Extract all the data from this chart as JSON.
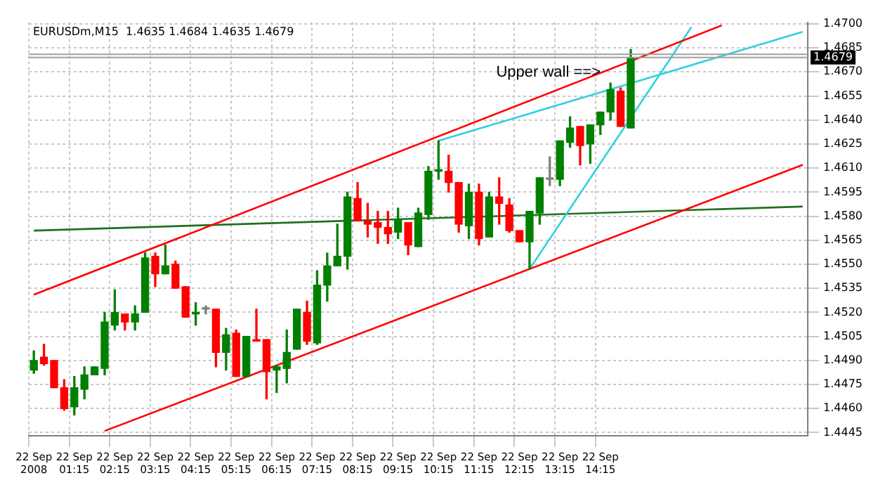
{
  "chart_data": {
    "type": "candlestick",
    "title": "EURUSDm,M15  1.4635 1.4684 1.4635 1.4679",
    "annotations": [
      "Upper wall ==>"
    ],
    "categories": [
      "22 Sep 2008",
      null,
      null,
      null,
      "22 Sep 01:15",
      null,
      null,
      null,
      "22 Sep 02:15",
      null,
      null,
      null,
      "22 Sep 03:15",
      null,
      null,
      null,
      "22 Sep 04:15",
      null,
      null,
      null,
      "22 Sep 05:15",
      null,
      null,
      null,
      "22 Sep 06:15",
      null,
      null,
      null,
      "22 Sep 07:15",
      null,
      null,
      null,
      "22 Sep 08:15",
      null,
      null,
      null,
      "22 Sep 09:15",
      null,
      null,
      null,
      "22 Sep 10:15",
      null,
      null,
      null,
      "22 Sep 11:15",
      null,
      null,
      null,
      "22 Sep 12:15",
      null,
      null,
      null,
      "22 Sep 13:15",
      null,
      null,
      null,
      "22 Sep 14:15",
      null,
      null,
      null,
      null,
      null,
      null,
      null,
      null,
      null,
      null,
      null,
      null,
      null,
      null,
      null,
      null,
      null,
      null,
      null,
      null
    ],
    "ohlc": [
      [
        1.4484,
        1.4496,
        1.4482,
        1.449
      ],
      [
        1.4492,
        1.45,
        1.4487,
        1.4488
      ],
      [
        1.449,
        1.449,
        1.4473,
        1.4473
      ],
      [
        1.4473,
        1.4478,
        1.4459,
        1.446
      ],
      [
        1.4461,
        1.448,
        1.4456,
        1.4473
      ],
      [
        1.4472,
        1.4486,
        1.4466,
        1.4481
      ],
      [
        1.4481,
        1.4486,
        1.4481,
        1.4486
      ],
      [
        1.4485,
        1.452,
        1.4481,
        1.4514
      ],
      [
        1.4512,
        1.4534,
        1.4509,
        1.452
      ],
      [
        1.4519,
        1.4519,
        1.4509,
        1.4514
      ],
      [
        1.4514,
        1.4524,
        1.4509,
        1.4519
      ],
      [
        1.452,
        1.4557,
        1.452,
        1.4554
      ],
      [
        1.4555,
        1.4557,
        1.4536,
        1.4544
      ],
      [
        1.4544,
        1.4562,
        1.4544,
        1.4549
      ],
      [
        1.455,
        1.4552,
        1.4535,
        1.4535
      ],
      [
        1.4536,
        1.4536,
        1.4517,
        1.4517
      ],
      [
        1.4519,
        1.4526,
        1.4512,
        1.452
      ],
      [
        1.4522,
        1.4524,
        1.4519,
        1.4522
      ],
      [
        1.4522,
        1.4522,
        1.4486,
        1.4495
      ],
      [
        1.4495,
        1.451,
        1.4484,
        1.4506
      ],
      [
        1.4507,
        1.4509,
        1.448,
        1.448
      ],
      [
        1.448,
        1.4505,
        1.448,
        1.4505
      ],
      [
        1.4503,
        1.4522,
        1.4502,
        1.4502
      ],
      [
        1.4503,
        1.4503,
        1.4466,
        1.4483
      ],
      [
        1.4484,
        1.4487,
        1.447,
        1.4486
      ],
      [
        1.4485,
        1.4509,
        1.4476,
        1.4495
      ],
      [
        1.4497,
        1.4522,
        1.4497,
        1.4522
      ],
      [
        1.452,
        1.4527,
        1.45,
        1.4502
      ],
      [
        1.4501,
        1.4546,
        1.45,
        1.4537
      ],
      [
        1.4537,
        1.4557,
        1.4527,
        1.4549
      ],
      [
        1.4549,
        1.4575,
        1.4549,
        1.4555
      ],
      [
        1.4555,
        1.4595,
        1.4547,
        1.4592
      ],
      [
        1.4591,
        1.4601,
        1.4577,
        1.4577
      ],
      [
        1.4577,
        1.4588,
        1.4567,
        1.4575
      ],
      [
        1.4576,
        1.4583,
        1.4563,
        1.4573
      ],
      [
        1.4573,
        1.4583,
        1.4563,
        1.4569
      ],
      [
        1.457,
        1.4585,
        1.4566,
        1.4578
      ],
      [
        1.4576,
        1.4576,
        1.4556,
        1.4562
      ],
      [
        1.4561,
        1.4585,
        1.4561,
        1.4582
      ],
      [
        1.4581,
        1.4611,
        1.4578,
        1.4608
      ],
      [
        1.4608,
        1.4627,
        1.4603,
        1.4609
      ],
      [
        1.4608,
        1.4618,
        1.4595,
        1.4601
      ],
      [
        1.4601,
        1.4601,
        1.457,
        1.4575
      ],
      [
        1.4574,
        1.46,
        1.4566,
        1.4595
      ],
      [
        1.4595,
        1.46,
        1.4562,
        1.4566
      ],
      [
        1.4567,
        1.4595,
        1.4567,
        1.4592
      ],
      [
        1.4592,
        1.4604,
        1.4575,
        1.4588
      ],
      [
        1.4587,
        1.4591,
        1.457,
        1.4571
      ],
      [
        1.4571,
        1.4571,
        1.4564,
        1.4564
      ],
      [
        1.4564,
        1.4583,
        1.4547,
        1.4583
      ],
      [
        1.4582,
        1.4604,
        1.4575,
        1.4604
      ],
      [
        1.4603,
        1.4617,
        1.4599,
        1.4603
      ],
      [
        1.4603,
        1.4627,
        1.4599,
        1.4627
      ],
      [
        1.4626,
        1.4642,
        1.4623,
        1.4635
      ],
      [
        1.4636,
        1.4636,
        1.4612,
        1.4624
      ],
      [
        1.4625,
        1.4637,
        1.4613,
        1.4637
      ],
      [
        1.4637,
        1.4645,
        1.4631,
        1.4645
      ],
      [
        1.4645,
        1.4663,
        1.464,
        1.4659
      ],
      [
        1.4658,
        1.466,
        1.4636,
        1.4636
      ],
      [
        1.4635,
        1.4684,
        1.4635,
        1.4679
      ],
      null,
      null,
      null,
      null,
      null,
      null,
      null,
      null,
      null,
      null,
      null,
      null,
      null,
      null,
      null,
      null,
      null
    ],
    "colors": [
      "#008000",
      "#ff0000",
      "#ff0000",
      "#ff0000",
      "#008000",
      "#008000",
      "#008000",
      "#008000",
      "#008000",
      "#ff0000",
      "#008000",
      "#008000",
      "#ff0000",
      "#008000",
      "#ff0000",
      "#ff0000",
      "#008000",
      "#808080",
      "#ff0000",
      "#008000",
      "#ff0000",
      "#008000",
      "#ff0000",
      "#ff0000",
      "#008000",
      "#008000",
      "#008000",
      "#ff0000",
      "#008000",
      "#008000",
      "#008000",
      "#008000",
      "#ff0000",
      "#ff0000",
      "#ff0000",
      "#ff0000",
      "#008000",
      "#ff0000",
      "#008000",
      "#008000",
      "#008000",
      "#ff0000",
      "#ff0000",
      "#008000",
      "#ff0000",
      "#008000",
      "#ff0000",
      "#ff0000",
      "#ff0000",
      "#008000",
      "#008000",
      "#808080",
      "#008000",
      "#008000",
      "#ff0000",
      "#008000",
      "#008000",
      "#008000",
      "#ff0000",
      "#008000",
      null,
      null,
      null,
      null,
      null,
      null,
      null,
      null,
      null,
      null,
      null,
      null,
      null,
      null,
      null,
      null,
      null
    ],
    "series": [
      {
        "type": "line",
        "color": "#ff0000",
        "values": [
          1.4531,
          null,
          null,
          null,
          null,
          null,
          null,
          null,
          null,
          null,
          null,
          null,
          null,
          null,
          null,
          null,
          null,
          null,
          null,
          null,
          null,
          null,
          null,
          null,
          null,
          null,
          null,
          null,
          null,
          null,
          null,
          null,
          null,
          null,
          null,
          null,
          null,
          null,
          null,
          null,
          null,
          null,
          null,
          null,
          null,
          null,
          null,
          null,
          null,
          null,
          null,
          null,
          null,
          null,
          null,
          null,
          null,
          null,
          null,
          null,
          null,
          null,
          null,
          null,
          null,
          null,
          null,
          null,
          1.4699,
          null,
          null,
          null,
          null,
          null,
          null,
          null,
          null
        ]
      },
      {
        "type": "line",
        "color": "#ff0000",
        "values": [
          null,
          null,
          null,
          null,
          null,
          null,
          null,
          1.4446,
          null,
          null,
          null,
          null,
          null,
          null,
          null,
          null,
          null,
          null,
          null,
          null,
          null,
          null,
          null,
          null,
          null,
          null,
          null,
          null,
          null,
          null,
          null,
          null,
          null,
          null,
          null,
          null,
          null,
          null,
          null,
          null,
          null,
          null,
          null,
          null,
          null,
          null,
          null,
          null,
          null,
          null,
          null,
          null,
          null,
          null,
          null,
          null,
          null,
          null,
          null,
          null,
          null,
          null,
          null,
          null,
          null,
          null,
          null,
          null,
          null,
          null,
          null,
          null,
          null,
          null,
          null,
          null,
          1.4612
        ]
      },
      {
        "type": "line",
        "color": "#30d0e0",
        "values": [
          null,
          null,
          null,
          null,
          null,
          null,
          null,
          null,
          null,
          null,
          null,
          null,
          null,
          null,
          null,
          null,
          null,
          null,
          null,
          null,
          null,
          null,
          null,
          null,
          null,
          null,
          null,
          null,
          null,
          null,
          null,
          null,
          null,
          null,
          null,
          null,
          null,
          null,
          null,
          null,
          1.4627,
          null,
          null,
          null,
          null,
          null,
          null,
          null,
          null,
          null,
          null,
          null,
          null,
          null,
          null,
          null,
          null,
          null,
          null,
          null,
          null,
          null,
          null,
          null,
          null,
          null,
          null,
          null,
          null,
          null,
          null,
          null,
          null,
          null,
          null,
          null,
          1.4695
        ]
      },
      {
        "type": "line",
        "color": "#30d0e0",
        "values": [
          null,
          null,
          null,
          null,
          null,
          null,
          null,
          null,
          null,
          null,
          null,
          null,
          null,
          null,
          null,
          null,
          null,
          null,
          null,
          null,
          null,
          null,
          null,
          null,
          null,
          null,
          null,
          null,
          null,
          null,
          null,
          null,
          null,
          null,
          null,
          null,
          null,
          null,
          null,
          null,
          null,
          null,
          null,
          null,
          null,
          null,
          null,
          null,
          null,
          1.4547,
          null,
          null,
          null,
          null,
          null,
          null,
          null,
          null,
          null,
          null,
          null,
          null,
          null,
          null,
          null,
          1.4698,
          null,
          null,
          null,
          null,
          null,
          null,
          null,
          null,
          null,
          null,
          null
        ]
      },
      {
        "type": "line",
        "color": "#207020",
        "values": [
          1.4571,
          null,
          null,
          null,
          null,
          null,
          null,
          null,
          null,
          null,
          null,
          null,
          null,
          null,
          null,
          null,
          null,
          null,
          null,
          null,
          null,
          null,
          null,
          null,
          null,
          null,
          null,
          null,
          null,
          null,
          null,
          null,
          null,
          null,
          null,
          null,
          null,
          null,
          null,
          null,
          null,
          null,
          null,
          null,
          null,
          null,
          null,
          null,
          null,
          null,
          null,
          null,
          null,
          null,
          null,
          null,
          null,
          null,
          null,
          null,
          null,
          null,
          null,
          null,
          null,
          null,
          null,
          null,
          null,
          null,
          null,
          null,
          null,
          null,
          null,
          null,
          1.4586
        ]
      }
    ],
    "ref_lines": [
      {
        "axis": "y",
        "value": 1.4681,
        "color": "#a0a0a0"
      },
      {
        "axis": "y",
        "value": 1.4679,
        "label": "1.4679",
        "color": "#a0a0a0"
      }
    ],
    "ylim": [
      1.4443,
      1.4701
    ],
    "yticks": [
      1.4445,
      {
        "value": 1.446,
        "label": "1.4460"
      },
      1.4475,
      {
        "value": 1.449,
        "label": "1.4490"
      },
      1.4505,
      {
        "value": 1.452,
        "label": "1.4520"
      },
      1.4535,
      {
        "value": 1.455,
        "label": "1.4550"
      },
      1.4565,
      {
        "value": 1.458,
        "label": "1.4580"
      },
      1.4595,
      {
        "value": 1.461,
        "label": "1.4610"
      },
      1.4625,
      {
        "value": 1.464,
        "label": "1.4640"
      },
      1.4655,
      {
        "value": 1.467,
        "label": "1.4670"
      },
      1.4685,
      {
        "value": 1.47,
        "label": "1.4700"
      }
    ],
    "grid": true,
    "legend": false
  }
}
